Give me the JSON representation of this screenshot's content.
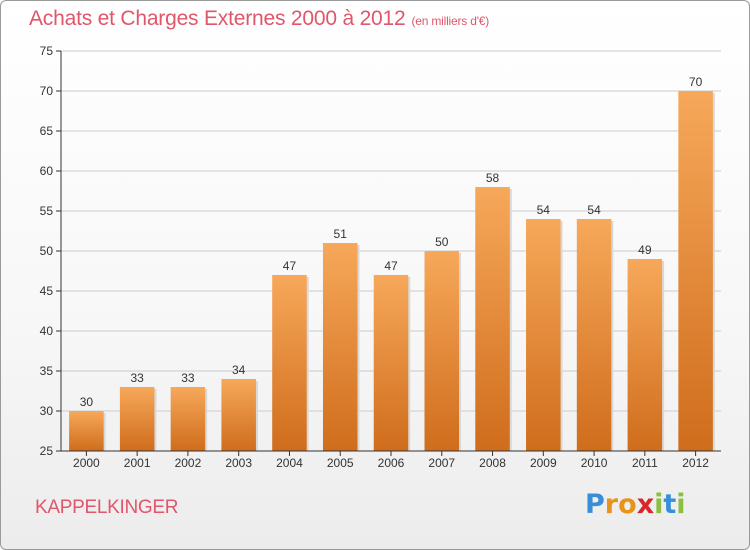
{
  "title": "Achats et Charges Externes 2000 à 2012",
  "unit": "(en milliers d'€)",
  "commune": "KAPPELKINGER",
  "logo": {
    "text": "Proxiti",
    "letters": [
      {
        "ch": "P",
        "color": "#3a8ed8"
      },
      {
        "ch": "r",
        "color": "#e8931a"
      },
      {
        "ch": "o",
        "color": "#e8931a"
      },
      {
        "ch": "x",
        "color": "#d8262a"
      },
      {
        "ch": "i",
        "color": "#8cbf3f"
      },
      {
        "ch": "t",
        "color": "#3a8ed8"
      },
      {
        "ch": "i",
        "color": "#8cbf3f"
      }
    ]
  },
  "colors": {
    "accent": "#e0566a",
    "bar_top": "#f7a85a",
    "bar_bottom": "#cf6d1c",
    "grid": "#cccccc",
    "axis": "#333333"
  },
  "chart_data": {
    "type": "bar",
    "title": "Achats et Charges Externes 2000 à 2012",
    "xlabel": "",
    "ylabel": "",
    "categories": [
      "2000",
      "2001",
      "2002",
      "2003",
      "2004",
      "2005",
      "2006",
      "2007",
      "2008",
      "2009",
      "2010",
      "2011",
      "2012"
    ],
    "values": [
      30,
      33,
      33,
      34,
      47,
      51,
      47,
      50,
      58,
      54,
      54,
      49,
      70
    ],
    "ylim": [
      25,
      75
    ],
    "yticks": [
      25,
      30,
      35,
      40,
      45,
      50,
      55,
      60,
      65,
      70,
      75
    ],
    "grid": true,
    "data_labels": true
  }
}
